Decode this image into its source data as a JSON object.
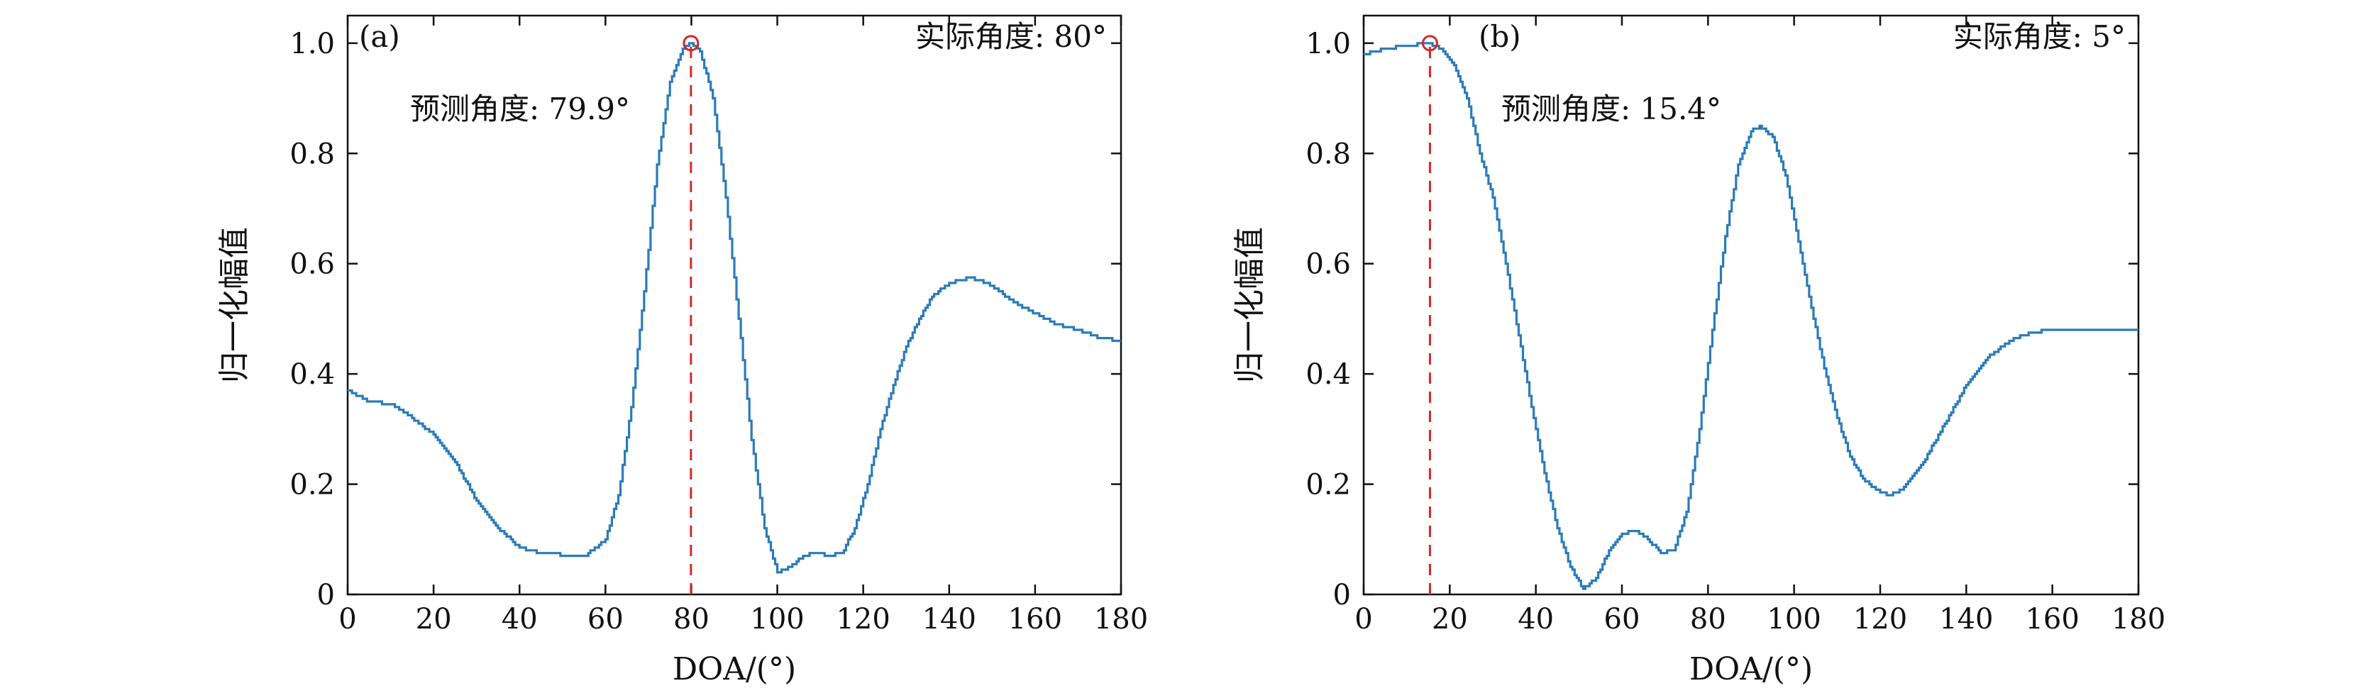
{
  "chart_data": [
    {
      "type": "line",
      "panel_label": "(a)",
      "actual_text": "实际角度: 80°",
      "predicted_text": "预测角度: 79.9°",
      "actual_angle": 80,
      "predicted_angle": 79.9,
      "xlabel": "DOA/(°)",
      "ylabel": "归一化幅值",
      "xlim": [
        0,
        180
      ],
      "ylim": [
        0,
        1.05
      ],
      "xticks": [
        0,
        20,
        40,
        60,
        80,
        100,
        120,
        140,
        160,
        180
      ],
      "yticks": [
        0,
        0.2,
        0.4,
        0.6,
        0.8,
        1.0
      ],
      "ytick_labels": [
        "0",
        "0.2",
        "0.4",
        "0.6",
        "0.8",
        "1.0"
      ],
      "grid": false,
      "line_color": "#2b7bb9",
      "marker_color": "#d62728",
      "series": [
        {
          "x": [
            0,
            5,
            10,
            15,
            20,
            25,
            30,
            35,
            40,
            45,
            50,
            55,
            60,
            63,
            66,
            69,
            72,
            75,
            78,
            80,
            82,
            85,
            88,
            91,
            94,
            97,
            100,
            103,
            106,
            109,
            112,
            115,
            118,
            121,
            124,
            127,
            130,
            133,
            136,
            140,
            145,
            150,
            155,
            160,
            165,
            170,
            175,
            180
          ],
          "y": [
            0.37,
            0.35,
            0.345,
            0.32,
            0.29,
            0.24,
            0.17,
            0.12,
            0.085,
            0.075,
            0.072,
            0.068,
            0.1,
            0.18,
            0.34,
            0.55,
            0.78,
            0.93,
            0.99,
            1.0,
            0.985,
            0.9,
            0.72,
            0.5,
            0.28,
            0.12,
            0.04,
            0.05,
            0.07,
            0.075,
            0.07,
            0.075,
            0.12,
            0.2,
            0.3,
            0.38,
            0.45,
            0.5,
            0.54,
            0.565,
            0.575,
            0.56,
            0.53,
            0.51,
            0.49,
            0.48,
            0.465,
            0.46
          ]
        }
      ]
    },
    {
      "type": "line",
      "panel_label": "(b)",
      "actual_text": "实际角度: 5°",
      "predicted_text": "预测角度: 15.4°",
      "actual_angle": 5,
      "predicted_angle": 15.4,
      "xlabel": "DOA/(°)",
      "ylabel": "归一化幅值",
      "xlim": [
        0,
        180
      ],
      "ylim": [
        0,
        1.05
      ],
      "xticks": [
        0,
        20,
        40,
        60,
        80,
        100,
        120,
        140,
        160,
        180
      ],
      "yticks": [
        0,
        0.2,
        0.4,
        0.6,
        0.8,
        1.0
      ],
      "ytick_labels": [
        "0",
        "0.2",
        "0.4",
        "0.6",
        "0.8",
        "1.0"
      ],
      "grid": false,
      "line_color": "#2b7bb9",
      "marker_color": "#d62728",
      "series": [
        {
          "x": [
            0,
            5,
            10,
            15,
            18,
            21,
            24,
            27,
            30,
            33,
            36,
            39,
            42,
            45,
            48,
            51,
            54,
            57,
            60,
            63,
            66,
            69,
            72,
            75,
            78,
            81,
            84,
            87,
            90,
            92,
            95,
            98,
            101,
            104,
            107,
            110,
            113,
            116,
            119,
            122,
            125,
            130,
            135,
            140,
            145,
            150,
            155,
            160,
            170,
            180
          ],
          "y": [
            0.98,
            0.99,
            0.995,
            1.0,
            0.99,
            0.96,
            0.9,
            0.8,
            0.72,
            0.6,
            0.47,
            0.34,
            0.22,
            0.12,
            0.05,
            0.01,
            0.03,
            0.08,
            0.11,
            0.115,
            0.1,
            0.075,
            0.08,
            0.15,
            0.3,
            0.48,
            0.65,
            0.78,
            0.84,
            0.85,
            0.83,
            0.76,
            0.64,
            0.52,
            0.41,
            0.32,
            0.25,
            0.21,
            0.19,
            0.18,
            0.19,
            0.24,
            0.31,
            0.38,
            0.43,
            0.46,
            0.475,
            0.48,
            0.48,
            0.48
          ]
        }
      ]
    }
  ]
}
